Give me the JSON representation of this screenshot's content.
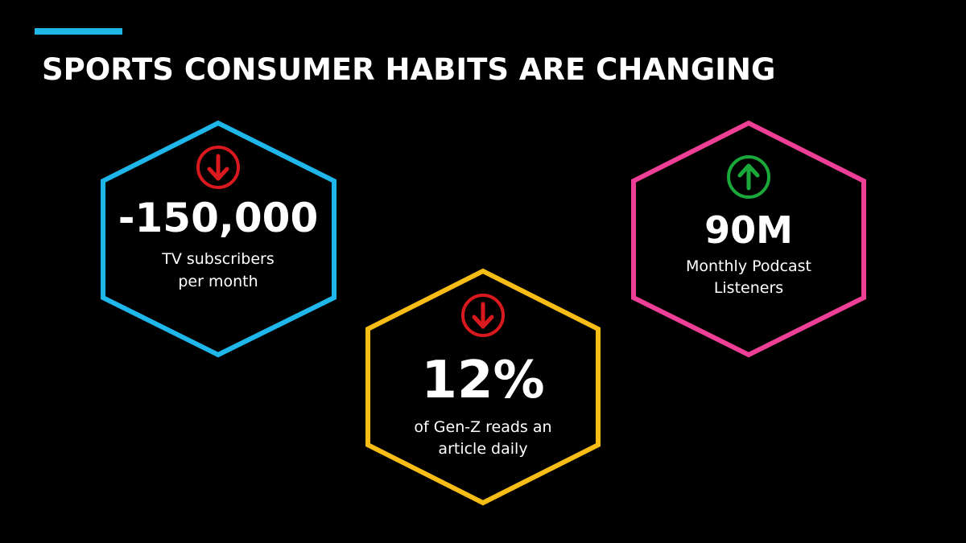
{
  "header": {
    "title": "SPORTS CONSUMER HABITS ARE CHANGING"
  },
  "stats": [
    {
      "value": "-150,000",
      "label": [
        "TV subscribers",
        "per month"
      ]
    },
    {
      "value": "12%",
      "label": [
        "of Gen-Z reads an",
        "article daily"
      ]
    },
    {
      "value": "90M",
      "label": [
        "Monthly Podcast",
        "Listeners"
      ]
    }
  ]
}
